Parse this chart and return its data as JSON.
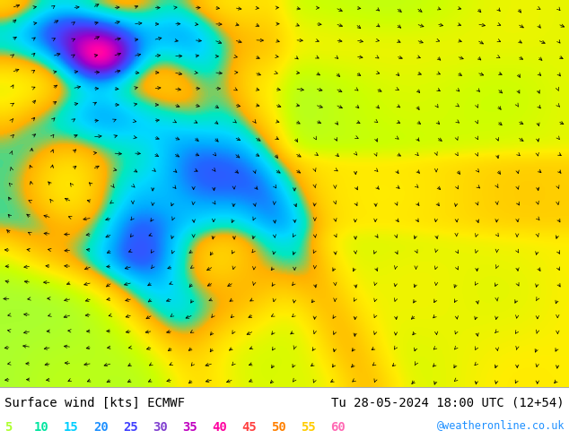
{
  "title_left": "Surface wind [kts] ECMWF",
  "title_right": "Tu 28-05-2024 18:00 UTC (12+54)",
  "credit": "@weatheronline.co.uk",
  "legend_values": [
    "5",
    "10",
    "15",
    "20",
    "25",
    "30",
    "35",
    "40",
    "45",
    "50",
    "55",
    "60"
  ],
  "legend_colors": [
    "#adff2f",
    "#00e5a0",
    "#00cfff",
    "#1e90ff",
    "#4040ff",
    "#8040d0",
    "#c000c0",
    "#ff00a0",
    "#ff4040",
    "#ff8000",
    "#ffcc00",
    "#ff69b4"
  ],
  "bg_color": "#ffffff",
  "font_size_label": 10,
  "font_size_legend": 10,
  "fig_width": 6.34,
  "fig_height": 4.9,
  "map_colors": [
    "#006400",
    "#007000",
    "#008000",
    "#009000",
    "#00aa00",
    "#00cc00",
    "#22cc22",
    "#44dd44",
    "#66ee66",
    "#88ff44",
    "#aaff22",
    "#ccff00",
    "#eeff00",
    "#ffee00",
    "#ffd000",
    "#ffb000",
    "#ff9000",
    "#00e0e0",
    "#00c0ff",
    "#0090ff",
    "#0060ff",
    "#3030ff",
    "#6000e0",
    "#9000b0",
    "#cc00cc",
    "#ff00ff",
    "#ff00c0"
  ]
}
